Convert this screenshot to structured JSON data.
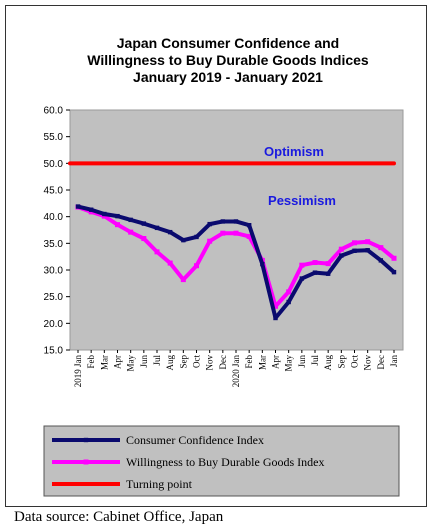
{
  "chart_data": {
    "type": "line",
    "title": [
      "Japan Consumer Confidence and",
      "Willingness to Buy Durable Goods Indices",
      "January 2019 - January 2021"
    ],
    "xlabel": "",
    "ylabel": "",
    "ylim": [
      15,
      60
    ],
    "yticks": [
      "60.0",
      "55.0",
      "50.0",
      "45.0",
      "40.0",
      "35.0",
      "30.0",
      "25.0",
      "20.0",
      "15.0"
    ],
    "categories": [
      "2019 Jan",
      "Feb",
      "Mar",
      "Apr",
      "May",
      "Jun",
      "Jul",
      "Aug",
      "Sep",
      "Oct",
      "Nov",
      "Dec",
      "2020 Jan",
      "Feb",
      "Mar",
      "Apr",
      "May",
      "Jun",
      "Jul",
      "Aug",
      "Sep",
      "Oct",
      "Nov",
      "Dec",
      "Jan"
    ],
    "series": [
      {
        "name": "Consumer Confidence Index",
        "color": "#0a0a6e",
        "values": [
          41.9,
          41.3,
          40.5,
          40.1,
          39.4,
          38.7,
          37.9,
          37.1,
          35.6,
          36.2,
          38.6,
          39.1,
          39.1,
          38.4,
          31.1,
          21.0,
          24.0,
          28.4,
          29.5,
          29.3,
          32.7,
          33.6,
          33.7,
          31.8,
          29.6
        ]
      },
      {
        "name": "Willingness to Buy Durable Goods Index",
        "color": "#ff00ff",
        "values": [
          41.8,
          40.9,
          40.1,
          38.5,
          37.1,
          35.9,
          33.4,
          31.3,
          28.2,
          30.8,
          35.4,
          36.9,
          36.9,
          36.3,
          31.8,
          23.2,
          25.9,
          30.9,
          31.4,
          31.2,
          33.9,
          35.1,
          35.3,
          34.2,
          32.2
        ]
      },
      {
        "name": "Turning point",
        "color": "#ff0000",
        "values": [
          50,
          50,
          50,
          50,
          50,
          50,
          50,
          50,
          50,
          50,
          50,
          50,
          50,
          50,
          50,
          50,
          50,
          50,
          50,
          50,
          50,
          50,
          50,
          50,
          50
        ]
      }
    ],
    "annotations": {
      "optimism": "Optimism",
      "pessimism": "Pessimism"
    },
    "grid": false,
    "legend_position": "bottom",
    "plot_background": "#c0c0c0"
  },
  "source_text": "Data source: Cabinet Office, Japan"
}
